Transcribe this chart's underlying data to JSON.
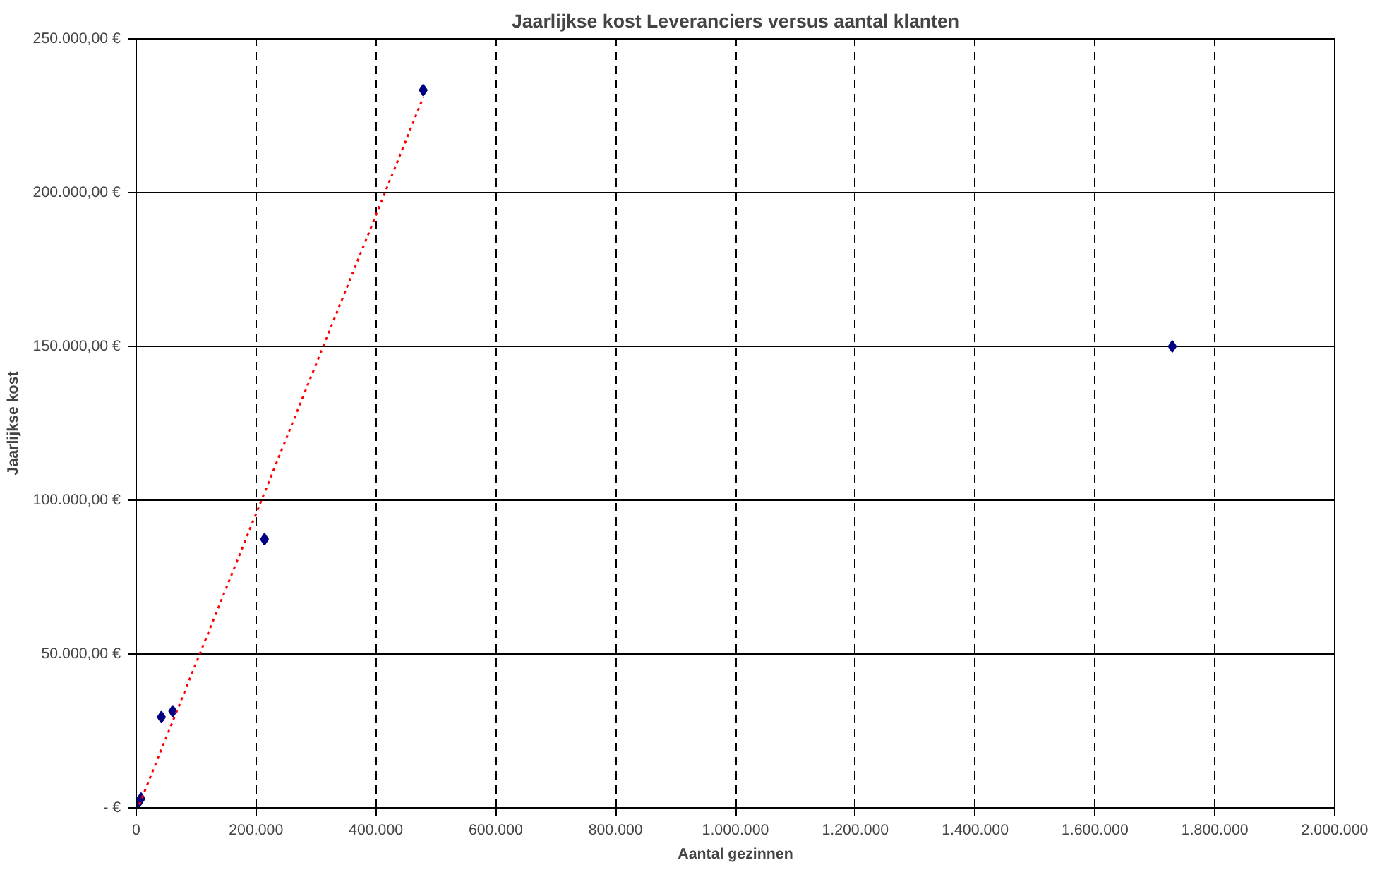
{
  "chart_data": {
    "type": "scatter",
    "title": "Jaarlijkse kost Leveranciers versus aantal klanten",
    "xlabel": "Aantal gezinnen",
    "ylabel": "Jaarlijkse kost",
    "xlim": [
      0,
      2000000
    ],
    "ylim": [
      0,
      250000
    ],
    "xticks": [
      {
        "value": 0,
        "label": "0"
      },
      {
        "value": 200000,
        "label": "200.000"
      },
      {
        "value": 400000,
        "label": "400.000"
      },
      {
        "value": 600000,
        "label": "600.000"
      },
      {
        "value": 800000,
        "label": "800.000"
      },
      {
        "value": 1000000,
        "label": "1.000.000"
      },
      {
        "value": 1200000,
        "label": "1.200.000"
      },
      {
        "value": 1400000,
        "label": "1.400.000"
      },
      {
        "value": 1600000,
        "label": "1.600.000"
      },
      {
        "value": 1800000,
        "label": "1.800.000"
      },
      {
        "value": 2000000,
        "label": "2.000.000"
      }
    ],
    "yticks": [
      {
        "value": 0,
        "label": "- €"
      },
      {
        "value": 50000,
        "label": "50.000,00 €"
      },
      {
        "value": 100000,
        "label": "100.000,00 €"
      },
      {
        "value": 150000,
        "label": "150.000,00 €"
      },
      {
        "value": 200000,
        "label": "200.000,00 €"
      },
      {
        "value": 250000,
        "label": "250.000,00 €"
      }
    ],
    "grid": true,
    "series": [
      {
        "color": "#000080",
        "marker": "diamond",
        "x": [
          3000,
          8000,
          42000,
          61000,
          214000,
          479000,
          1729000
        ],
        "values": [
          1500,
          3000,
          29500,
          31400,
          87300,
          233300,
          150000
        ]
      },
      {
        "type": "line",
        "color": "#ff0000",
        "line_style": "dotted",
        "marker": "none",
        "x": [
          5000,
          479000
        ],
        "values": [
          1000,
          231000
        ]
      }
    ]
  }
}
